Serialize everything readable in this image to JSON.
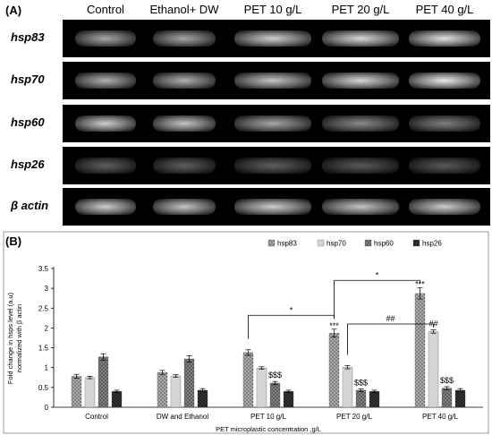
{
  "panelA": {
    "label": "(A)",
    "columns": [
      "Control",
      "Ethanol+ DW",
      "PET 10 g/L",
      "PET 20 g/L",
      "PET 40 g/L"
    ],
    "rows": [
      {
        "gene": "hsp83",
        "intensity": [
          0.55,
          0.55,
          0.75,
          0.8,
          0.85
        ]
      },
      {
        "gene": "hsp70",
        "intensity": [
          0.6,
          0.6,
          0.7,
          0.8,
          0.9
        ]
      },
      {
        "gene": "hsp60",
        "intensity": [
          0.75,
          0.7,
          0.55,
          0.4,
          0.35
        ]
      },
      {
        "gene": "hsp26",
        "intensity": [
          0.18,
          0.18,
          0.18,
          0.15,
          0.15
        ]
      },
      {
        "gene": "β actin",
        "intensity": [
          0.75,
          0.7,
          0.75,
          0.7,
          0.75
        ]
      }
    ]
  },
  "panelB": {
    "label": "(B)"
  },
  "chart_data": {
    "type": "bar",
    "title": "",
    "xlabel": "PET microplastic concentration ,g/L",
    "ylabel_lines": [
      "Fold change in hsps level (a.u)",
      "normalized with β actin"
    ],
    "ylim": [
      0,
      3.5
    ],
    "yticks": [
      "0",
      "0.5",
      "1",
      "1.5",
      "2",
      "2.5",
      "3",
      "3.5"
    ],
    "categories": [
      "Control",
      "DW and Ethanol",
      "PET 10 g/L",
      "PET 20 g/L",
      "PET 40 g/L"
    ],
    "legend_position": "top-right",
    "series": [
      {
        "name": "hsp83",
        "values": [
          0.78,
          0.88,
          1.38,
          1.87,
          2.87
        ],
        "errors": [
          0.05,
          0.05,
          0.07,
          0.1,
          0.14
        ],
        "fill": "#bdbdbd"
      },
      {
        "name": "hsp70",
        "values": [
          0.75,
          0.79,
          0.99,
          1.01,
          1.91
        ],
        "errors": [
          0.03,
          0.03,
          0.03,
          0.04,
          0.04
        ],
        "fill": "#eeeeee"
      },
      {
        "name": "hsp60",
        "values": [
          1.27,
          1.22,
          0.61,
          0.43,
          0.48
        ],
        "errors": [
          0.08,
          0.08,
          0.04,
          0.03,
          0.04
        ],
        "fill": "#8a8a8a"
      },
      {
        "name": "hsp26",
        "values": [
          0.4,
          0.43,
          0.4,
          0.4,
          0.43
        ],
        "errors": [
          0.03,
          0.04,
          0.03,
          0.03,
          0.04
        ],
        "fill": "#3a3a3a"
      }
    ],
    "bar_labels": [
      {
        "category": 2,
        "series": 2,
        "text": "$$$"
      },
      {
        "category": 3,
        "series": 0,
        "text": "***"
      },
      {
        "category": 3,
        "series": 2,
        "text": "$$$"
      },
      {
        "category": 4,
        "series": 0,
        "text": "***"
      },
      {
        "category": 4,
        "series": 1,
        "text": "##"
      },
      {
        "category": 4,
        "series": 2,
        "text": "$$$"
      }
    ],
    "brackets": [
      {
        "from_cat": 2,
        "from_series": 0,
        "to_cat": 3,
        "to_series": 0,
        "level": 2.32,
        "text": "*"
      },
      {
        "from_cat": 3,
        "from_series": 1,
        "to_cat": 4,
        "to_series": 1,
        "level": 2.1,
        "text": "##"
      },
      {
        "from_cat": 3,
        "from_series": 0,
        "to_cat": 4,
        "to_series": 0,
        "level": 3.2,
        "text": "*"
      }
    ]
  }
}
